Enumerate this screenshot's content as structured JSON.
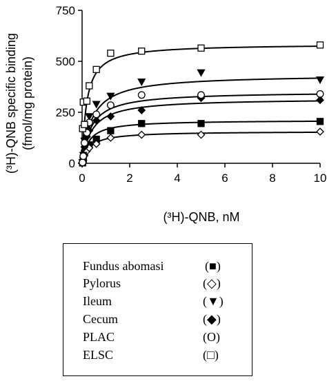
{
  "chart_data": {
    "type": "scatter",
    "ylabel_line1": "(³H)-QNB specific binding",
    "ylabel_line2": "(fmol/mg protein)",
    "xlabel": "(³H)-QNB, nM",
    "xlim": [
      0,
      10
    ],
    "ylim": [
      0,
      750
    ],
    "x_ticks": [
      0,
      2,
      4,
      6,
      8,
      10
    ],
    "y_ticks": [
      0,
      250,
      500,
      750
    ],
    "grid": false,
    "legend_position": "below",
    "series": [
      {
        "name": "Fundus abomasi",
        "legend_symbol": "(■)",
        "marker": "square-filled",
        "x": [
          0.02,
          0.05,
          0.1,
          0.2,
          0.3,
          0.6,
          1.2,
          2.5,
          5,
          10
        ],
        "y": [
          2,
          20,
          50,
          75,
          90,
          118,
          160,
          195,
          195,
          205
        ],
        "fit": {
          "bmax": 212,
          "kd": 0.28
        }
      },
      {
        "name": "Pylorus",
        "legend_symbol": "(◇)",
        "marker": "diamond-open",
        "x": [
          0.02,
          0.05,
          0.1,
          0.2,
          0.3,
          0.6,
          1.2,
          2.5,
          5,
          10
        ],
        "y": [
          2,
          15,
          40,
          60,
          75,
          95,
          125,
          140,
          140,
          155
        ],
        "fit": {
          "bmax": 157,
          "kd": 0.32
        }
      },
      {
        "name": "Ileum",
        "legend_symbol": "(▼)",
        "marker": "triangle-down-filled",
        "x": [
          0.02,
          0.05,
          0.1,
          0.2,
          0.3,
          0.6,
          1.2,
          2.5,
          5,
          10
        ],
        "y": [
          5,
          40,
          110,
          170,
          230,
          290,
          330,
          400,
          445,
          410
        ],
        "fit": {
          "bmax": 435,
          "kd": 0.42
        }
      },
      {
        "name": "Cecum",
        "legend_symbol": "(◆)",
        "marker": "diamond-filled",
        "x": [
          0.02,
          0.05,
          0.1,
          0.2,
          0.3,
          0.6,
          1.2,
          2.5,
          5,
          10
        ],
        "y": [
          3,
          30,
          80,
          130,
          160,
          210,
          230,
          260,
          320,
          310
        ],
        "fit": {
          "bmax": 318,
          "kd": 0.4
        }
      },
      {
        "name": "PLAC",
        "legend_symbol": "(O)",
        "marker": "circle-open",
        "x": [
          0.02,
          0.05,
          0.1,
          0.2,
          0.3,
          0.6,
          1.2,
          2.5,
          5,
          10
        ],
        "y": [
          4,
          35,
          100,
          150,
          200,
          240,
          285,
          335,
          335,
          340
        ],
        "fit": {
          "bmax": 352,
          "kd": 0.38
        }
      },
      {
        "name": "ELSC",
        "legend_symbol": "(□)",
        "marker": "square-open",
        "x": [
          0.02,
          0.05,
          0.1,
          0.2,
          0.3,
          0.6,
          1.2,
          2.5,
          5,
          10
        ],
        "y": [
          170,
          300,
          190,
          305,
          380,
          460,
          540,
          550,
          565,
          580
        ],
        "fit": {
          "bmax": 585,
          "kd": 0.19
        }
      }
    ]
  }
}
